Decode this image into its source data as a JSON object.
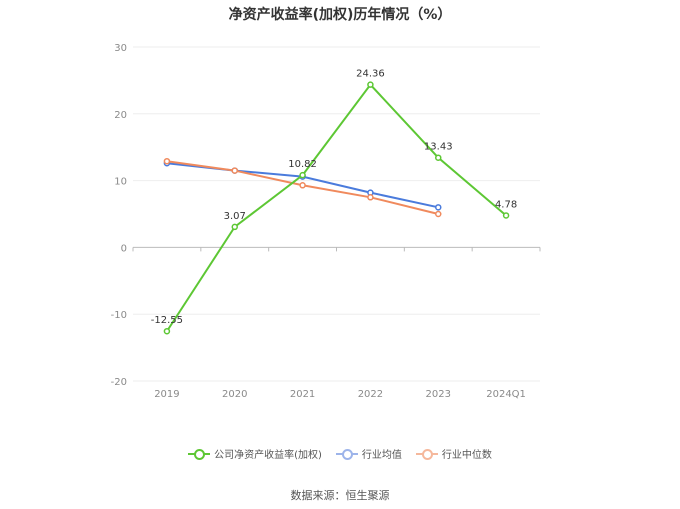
{
  "title": "净资产收益率(加权)历年情况（%）",
  "source": "数据来源：恒生聚源",
  "chart_data": {
    "type": "line",
    "categories": [
      "2019",
      "2020",
      "2021",
      "2022",
      "2023",
      "2024Q1"
    ],
    "ylim": [
      -20,
      30
    ],
    "yticks": [
      30,
      20,
      10,
      0,
      -10,
      -20
    ],
    "grid": true,
    "legend_position": "bottom",
    "series": [
      {
        "name": "公司净资产收益率(加权)",
        "color": "#5dc734",
        "values": [
          -12.55,
          3.07,
          10.82,
          24.36,
          13.43,
          4.78
        ],
        "labels": [
          "-12.55",
          "3.07",
          "10.82",
          "24.36",
          "13.43",
          "4.78"
        ]
      },
      {
        "name": "行业均值",
        "color": "#4a7bdc",
        "values": [
          12.6,
          11.5,
          10.6,
          8.2,
          6.0,
          null
        ],
        "labels": []
      },
      {
        "name": "行业中位数",
        "color": "#f08a5d",
        "values": [
          12.9,
          11.5,
          9.3,
          7.5,
          5.0,
          null
        ],
        "labels": []
      }
    ]
  }
}
